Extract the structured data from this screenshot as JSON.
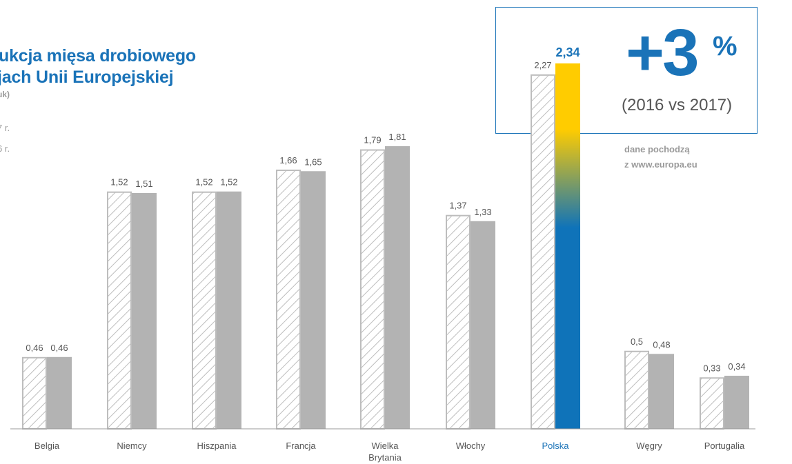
{
  "title": {
    "line1": "ukcja mięsa drobiowego",
    "line2": "jach Unii Europejskiej",
    "unit": "uk)"
  },
  "legend": {
    "item_2017": "7 r.",
    "item_2016": "6 r."
  },
  "callout": {
    "big_value": "+3",
    "percent_sign": "%",
    "comparison": "(2016 vs 2017)"
  },
  "source": {
    "line1": "dane pochodzą",
    "line2": "z www.europa.eu"
  },
  "colors": {
    "accent": "#1a73b8",
    "bar_grey": "#b3b3b3",
    "hatch_grey": "#bdbdbd",
    "highlight_top": "#ffcc00",
    "highlight_bottom": "#0f73b9"
  },
  "chart_data": {
    "type": "bar",
    "categories": [
      "Belgia",
      "Niemcy",
      "Hiszpania",
      "Francja",
      "Wielka Brytania",
      "Włochy",
      "Polska",
      "Węgry",
      "Portugalia"
    ],
    "category_lines": [
      [
        "Belgia"
      ],
      [
        "Niemcy"
      ],
      [
        "Hiszpania"
      ],
      [
        "Francja"
      ],
      [
        "Wielka",
        "Brytania"
      ],
      [
        "Włochy"
      ],
      [
        "Polska"
      ],
      [
        "Węgry"
      ],
      [
        "Portugalia"
      ]
    ],
    "series": [
      {
        "values": [
          0.46,
          1.52,
          1.52,
          1.66,
          1.79,
          1.37,
          2.27,
          0.5,
          0.33
        ],
        "labels": [
          "0,46",
          "1,52",
          "1,52",
          "1,66",
          "1,79",
          "1,37",
          "2,27",
          "0,5",
          "0,33"
        ],
        "style": "hatched"
      },
      {
        "values": [
          0.46,
          1.51,
          1.52,
          1.65,
          1.81,
          1.33,
          2.34,
          0.48,
          0.34
        ],
        "labels": [
          "0,46",
          "1,51",
          "1,52",
          "1,65",
          "1,81",
          "1,33",
          "2,34",
          "0,48",
          "0,34"
        ],
        "style": "solid"
      }
    ],
    "highlight_category": "Polska",
    "ylim": [
      0,
      2.34
    ],
    "grid": false
  }
}
